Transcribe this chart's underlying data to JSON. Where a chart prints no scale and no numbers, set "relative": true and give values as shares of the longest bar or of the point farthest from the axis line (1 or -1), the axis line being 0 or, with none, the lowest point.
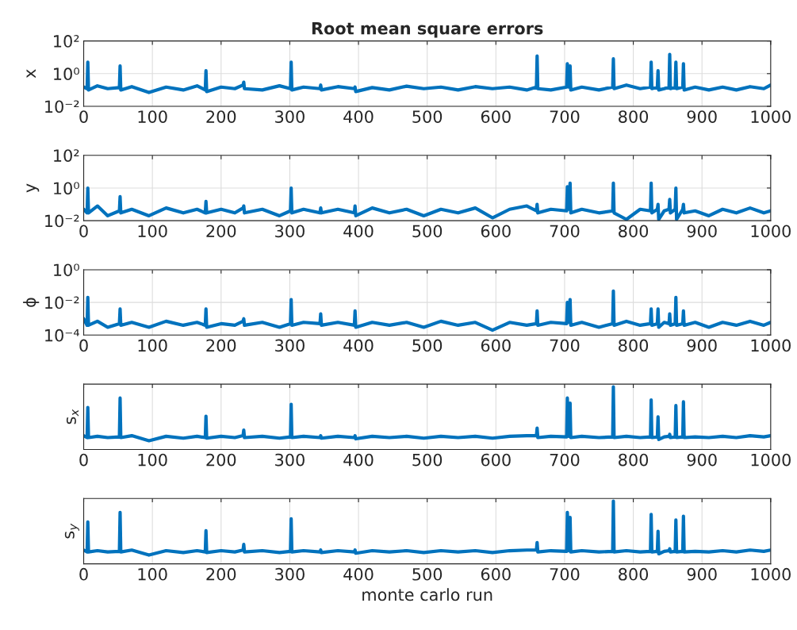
{
  "chart_data": [
    {
      "type": "line",
      "title": "Root mean square errors",
      "ylabel": "x",
      "log": true,
      "grid": true,
      "xlim": [
        0,
        1000
      ],
      "xticks": [
        0,
        100,
        200,
        300,
        400,
        500,
        600,
        700,
        800,
        900,
        1000
      ],
      "ylim": [
        0.01,
        100
      ],
      "yticks": [
        {
          "value": 0.01,
          "label": "10⁻²"
        },
        {
          "value": 1,
          "label": "10⁰"
        },
        {
          "value": 100,
          "label": "10²"
        }
      ],
      "x": [
        0,
        5,
        6,
        7,
        20,
        35,
        52,
        53,
        54,
        70,
        95,
        120,
        145,
        165,
        177,
        178,
        179,
        200,
        220,
        232,
        233,
        234,
        260,
        285,
        301,
        302,
        303,
        320,
        344,
        345,
        346,
        370,
        394,
        395,
        396,
        420,
        445,
        470,
        495,
        520,
        545,
        570,
        595,
        620,
        645,
        659,
        660,
        661,
        680,
        703,
        704,
        706,
        708,
        709,
        725,
        750,
        770,
        771,
        772,
        790,
        810,
        825,
        826,
        827,
        835,
        836,
        837,
        845,
        852,
        853,
        854,
        861,
        862,
        863,
        872,
        873,
        874,
        890,
        910,
        930,
        950,
        970,
        990,
        1000
      ],
      "series": [
        {
          "color": "#0072bd",
          "values": [
            0.15,
            0.12,
            5,
            0.1,
            0.18,
            0.12,
            0.14,
            3,
            0.1,
            0.16,
            0.07,
            0.15,
            0.1,
            0.18,
            0.1,
            1.5,
            0.08,
            0.15,
            0.12,
            0.2,
            0.3,
            0.12,
            0.1,
            0.18,
            0.12,
            5,
            0.1,
            0.15,
            0.12,
            0.2,
            0.1,
            0.16,
            0.12,
            0.15,
            0.08,
            0.14,
            0.1,
            0.17,
            0.12,
            0.15,
            0.1,
            0.16,
            0.12,
            0.15,
            0.1,
            0.15,
            12,
            0.12,
            0.1,
            0.15,
            4,
            0.15,
            3,
            0.1,
            0.15,
            0.1,
            0.15,
            8,
            0.12,
            0.2,
            0.12,
            0.15,
            5,
            0.12,
            0.15,
            1.5,
            0.1,
            0.12,
            0.15,
            15,
            0.12,
            0.15,
            5,
            0.12,
            0.15,
            4,
            0.1,
            0.15,
            0.1,
            0.15,
            0.1,
            0.16,
            0.12,
            0.2
          ]
        }
      ]
    },
    {
      "type": "line",
      "ylabel": "y",
      "log": true,
      "grid": true,
      "xlim": [
        0,
        1000
      ],
      "xticks": [
        0,
        100,
        200,
        300,
        400,
        500,
        600,
        700,
        800,
        900,
        1000
      ],
      "ylim": [
        0.01,
        100
      ],
      "yticks": [
        {
          "value": 0.01,
          "label": "10⁻²"
        },
        {
          "value": 1,
          "label": "10⁰"
        },
        {
          "value": 100,
          "label": "10²"
        }
      ],
      "x": [
        0,
        5,
        6,
        7,
        20,
        35,
        52,
        53,
        54,
        70,
        95,
        120,
        145,
        165,
        177,
        178,
        179,
        200,
        220,
        232,
        233,
        234,
        260,
        285,
        301,
        302,
        303,
        320,
        344,
        345,
        346,
        370,
        394,
        395,
        396,
        420,
        445,
        470,
        495,
        520,
        545,
        570,
        595,
        620,
        645,
        659,
        660,
        661,
        680,
        703,
        704,
        706,
        708,
        709,
        725,
        750,
        770,
        771,
        772,
        790,
        810,
        825,
        826,
        827,
        835,
        836,
        837,
        845,
        852,
        853,
        854,
        861,
        862,
        863,
        872,
        873,
        874,
        890,
        910,
        930,
        950,
        970,
        990,
        1000
      ],
      "series": [
        {
          "color": "#0072bd",
          "values": [
            0.05,
            0.03,
            1,
            0.03,
            0.08,
            0.02,
            0.04,
            0.3,
            0.03,
            0.05,
            0.02,
            0.06,
            0.03,
            0.05,
            0.03,
            0.15,
            0.03,
            0.05,
            0.03,
            0.06,
            0.08,
            0.03,
            0.05,
            0.02,
            0.04,
            1,
            0.03,
            0.05,
            0.03,
            0.06,
            0.03,
            0.05,
            0.03,
            0.08,
            0.02,
            0.06,
            0.03,
            0.05,
            0.02,
            0.05,
            0.03,
            0.06,
            0.015,
            0.05,
            0.08,
            0.04,
            0.1,
            0.03,
            0.05,
            0.04,
            1.2,
            0.05,
            2,
            0.03,
            0.05,
            0.03,
            0.04,
            2,
            0.03,
            0.012,
            0.05,
            0.04,
            2,
            0.03,
            0.05,
            0.1,
            0.012,
            0.04,
            0.05,
            0.2,
            0.03,
            0.05,
            1,
            0.012,
            0.05,
            0.1,
            0.03,
            0.04,
            0.02,
            0.05,
            0.03,
            0.06,
            0.03,
            0.04
          ]
        }
      ]
    },
    {
      "type": "line",
      "ylabel": "ϕ",
      "log": true,
      "grid": true,
      "xlim": [
        0,
        1000
      ],
      "xticks": [
        0,
        100,
        200,
        300,
        400,
        500,
        600,
        700,
        800,
        900,
        1000
      ],
      "ylim": [
        0.0001,
        1
      ],
      "yticks": [
        {
          "value": 0.0001,
          "label": "10⁻⁴"
        },
        {
          "value": 0.01,
          "label": "10⁻²"
        },
        {
          "value": 1,
          "label": "10⁰"
        }
      ],
      "x": [
        0,
        5,
        6,
        7,
        20,
        35,
        52,
        53,
        54,
        70,
        95,
        120,
        145,
        165,
        177,
        178,
        179,
        200,
        220,
        232,
        233,
        234,
        260,
        285,
        301,
        302,
        303,
        320,
        344,
        345,
        346,
        370,
        394,
        395,
        396,
        420,
        445,
        470,
        495,
        520,
        545,
        570,
        595,
        620,
        645,
        659,
        660,
        661,
        680,
        703,
        704,
        706,
        708,
        709,
        725,
        750,
        770,
        771,
        772,
        790,
        810,
        825,
        826,
        827,
        835,
        836,
        837,
        845,
        852,
        853,
        854,
        861,
        862,
        863,
        872,
        873,
        874,
        890,
        910,
        930,
        950,
        970,
        990,
        1000
      ],
      "series": [
        {
          "color": "#0072bd",
          "values": [
            0.001,
            0.0004,
            0.02,
            0.0004,
            0.0007,
            0.0003,
            0.0005,
            0.004,
            0.0004,
            0.0006,
            0.0003,
            0.0007,
            0.0004,
            0.0006,
            0.0004,
            0.004,
            0.0003,
            0.0005,
            0.0004,
            0.0007,
            0.001,
            0.0004,
            0.0006,
            0.0003,
            0.0005,
            0.015,
            0.0004,
            0.0006,
            0.0005,
            0.002,
            0.0004,
            0.0006,
            0.0004,
            0.003,
            0.0003,
            0.0006,
            0.0004,
            0.0006,
            0.0003,
            0.0007,
            0.0004,
            0.0006,
            0.0002,
            0.0006,
            0.0004,
            0.0005,
            0.003,
            0.0004,
            0.0006,
            0.0005,
            0.01,
            0.0006,
            0.015,
            0.0004,
            0.0006,
            0.0003,
            0.0005,
            0.05,
            0.0004,
            0.0007,
            0.0004,
            0.0005,
            0.004,
            0.0004,
            0.0005,
            0.004,
            0.0003,
            0.0006,
            0.0005,
            0.002,
            0.0004,
            0.0005,
            0.02,
            0.0004,
            0.0005,
            0.003,
            0.0004,
            0.0006,
            0.0003,
            0.0006,
            0.0004,
            0.0007,
            0.0004,
            0.0006
          ]
        }
      ]
    },
    {
      "type": "line",
      "ylabel": "s$_{x}$",
      "relative": true,
      "grid": true,
      "xlim": [
        0,
        1000
      ],
      "xticks": [
        0,
        100,
        200,
        300,
        400,
        500,
        600,
        700,
        800,
        900,
        1000
      ],
      "x": [
        0,
        5,
        6,
        7,
        20,
        35,
        52,
        53,
        54,
        70,
        95,
        120,
        145,
        165,
        177,
        178,
        179,
        200,
        220,
        232,
        233,
        234,
        260,
        285,
        301,
        302,
        303,
        320,
        344,
        345,
        346,
        370,
        394,
        395,
        396,
        420,
        445,
        470,
        495,
        520,
        545,
        570,
        595,
        620,
        645,
        659,
        660,
        661,
        680,
        703,
        704,
        706,
        708,
        709,
        725,
        750,
        770,
        771,
        772,
        790,
        810,
        825,
        826,
        827,
        835,
        836,
        837,
        845,
        852,
        853,
        854,
        861,
        862,
        863,
        872,
        873,
        874,
        890,
        910,
        930,
        950,
        970,
        990,
        1000
      ],
      "series": [
        {
          "color": "#0072bd",
          "values": [
            0.22,
            0.19,
            0.67,
            0.19,
            0.21,
            0.19,
            0.2,
            0.82,
            0.19,
            0.22,
            0.14,
            0.21,
            0.18,
            0.21,
            0.19,
            0.53,
            0.18,
            0.21,
            0.19,
            0.22,
            0.31,
            0.19,
            0.21,
            0.18,
            0.2,
            0.72,
            0.19,
            0.21,
            0.19,
            0.22,
            0.18,
            0.21,
            0.19,
            0.22,
            0.17,
            0.21,
            0.19,
            0.21,
            0.18,
            0.21,
            0.19,
            0.21,
            0.18,
            0.21,
            0.22,
            0.22,
            0.34,
            0.19,
            0.21,
            0.2,
            0.82,
            0.21,
            0.74,
            0.19,
            0.21,
            0.19,
            0.2,
            1,
            0.19,
            0.21,
            0.19,
            0.2,
            0.79,
            0.19,
            0.2,
            0.52,
            0.16,
            0.2,
            0.21,
            0.24,
            0.19,
            0.2,
            0.7,
            0.19,
            0.2,
            0.76,
            0.19,
            0.2,
            0.19,
            0.21,
            0.19,
            0.22,
            0.2,
            0.22
          ]
        }
      ]
    },
    {
      "type": "line",
      "ylabel": "s$_{y}$",
      "xlabel": "monte carlo run",
      "relative": true,
      "grid": true,
      "xlim": [
        0,
        1000
      ],
      "xticks": [
        0,
        100,
        200,
        300,
        400,
        500,
        600,
        700,
        800,
        900,
        1000
      ],
      "x": [
        0,
        5,
        6,
        7,
        20,
        35,
        52,
        53,
        54,
        70,
        95,
        120,
        145,
        165,
        177,
        178,
        179,
        200,
        220,
        232,
        233,
        234,
        260,
        285,
        301,
        302,
        303,
        320,
        344,
        345,
        346,
        370,
        394,
        395,
        396,
        420,
        445,
        470,
        495,
        520,
        545,
        570,
        595,
        620,
        645,
        659,
        660,
        661,
        680,
        703,
        704,
        706,
        708,
        709,
        725,
        750,
        770,
        771,
        772,
        790,
        810,
        825,
        826,
        827,
        835,
        836,
        837,
        845,
        852,
        853,
        854,
        861,
        862,
        863,
        872,
        873,
        874,
        890,
        910,
        930,
        950,
        970,
        990,
        1000
      ],
      "series": [
        {
          "color": "#0072bd",
          "values": [
            0.22,
            0.19,
            0.67,
            0.19,
            0.21,
            0.19,
            0.2,
            0.82,
            0.19,
            0.22,
            0.14,
            0.21,
            0.18,
            0.21,
            0.19,
            0.53,
            0.18,
            0.21,
            0.19,
            0.22,
            0.31,
            0.19,
            0.21,
            0.18,
            0.2,
            0.72,
            0.19,
            0.21,
            0.19,
            0.22,
            0.18,
            0.21,
            0.19,
            0.22,
            0.17,
            0.21,
            0.19,
            0.21,
            0.18,
            0.21,
            0.19,
            0.21,
            0.18,
            0.21,
            0.22,
            0.22,
            0.34,
            0.19,
            0.21,
            0.2,
            0.82,
            0.21,
            0.74,
            0.19,
            0.21,
            0.19,
            0.2,
            1,
            0.19,
            0.21,
            0.19,
            0.2,
            0.79,
            0.19,
            0.2,
            0.52,
            0.16,
            0.2,
            0.21,
            0.24,
            0.19,
            0.2,
            0.7,
            0.19,
            0.2,
            0.76,
            0.19,
            0.2,
            0.19,
            0.21,
            0.19,
            0.22,
            0.2,
            0.22
          ]
        }
      ]
    }
  ]
}
